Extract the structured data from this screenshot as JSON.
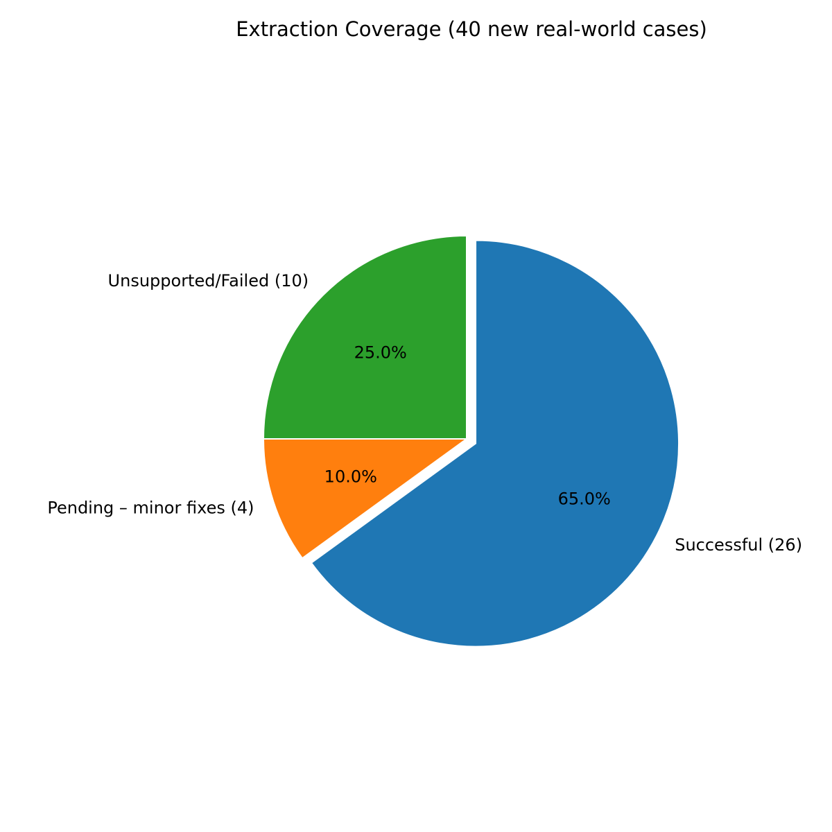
{
  "chart_data": {
    "type": "pie",
    "title": "Extraction Coverage (40 new real-world cases)",
    "start_angle_deg": 90,
    "direction": "clockwise",
    "slices": [
      {
        "label": "Successful (26)",
        "value": 26,
        "percent_label": "65.0%",
        "color": "#1f77b4",
        "exploded": true
      },
      {
        "label": "Pending – minor fixes (4)",
        "value": 4,
        "percent_label": "10.0%",
        "color": "#ff7f0e",
        "exploded": false
      },
      {
        "label": "Unsupported/Failed (10)",
        "value": 10,
        "percent_label": "25.0%",
        "color": "#2ca02c",
        "exploded": false
      }
    ]
  }
}
